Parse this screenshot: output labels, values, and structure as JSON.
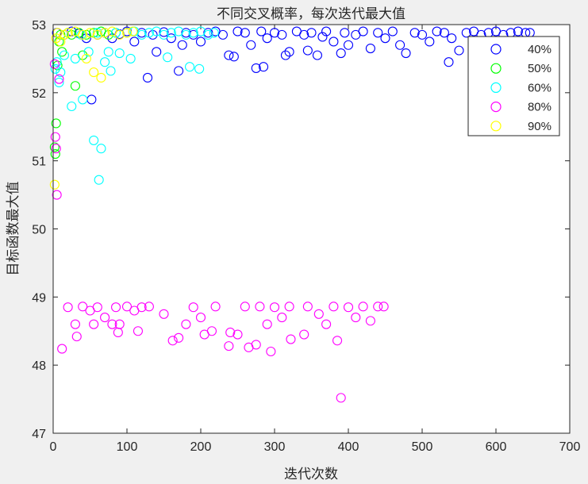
{
  "chart_data": {
    "type": "scatter",
    "title": "不同交叉概率，每次迭代最大值",
    "xlabel": "迭代次数",
    "ylabel": "目标函数最大值",
    "xlim": [
      0,
      700
    ],
    "ylim": [
      47,
      53
    ],
    "xticks": [
      0,
      100,
      200,
      300,
      400,
      500,
      600,
      700
    ],
    "yticks": [
      47,
      48,
      49,
      50,
      51,
      52,
      53
    ],
    "grid": false,
    "legend_position": "top-right",
    "marker": "open-circle",
    "series": [
      {
        "name": "40%",
        "color": "#0000ff",
        "points": [
          [
            5,
            52.88
          ],
          [
            15,
            52.85
          ],
          [
            25,
            52.9
          ],
          [
            35,
            52.87
          ],
          [
            45,
            52.8
          ],
          [
            52,
            51.9
          ],
          [
            60,
            52.85
          ],
          [
            70,
            52.88
          ],
          [
            80,
            52.8
          ],
          [
            90,
            52.86
          ],
          [
            100,
            52.9
          ],
          [
            110,
            52.75
          ],
          [
            120,
            52.88
          ],
          [
            128,
            52.22
          ],
          [
            135,
            52.85
          ],
          [
            140,
            52.6
          ],
          [
            150,
            52.89
          ],
          [
            160,
            52.8
          ],
          [
            170,
            52.32
          ],
          [
            175,
            52.7
          ],
          [
            180,
            52.88
          ],
          [
            190,
            52.85
          ],
          [
            200,
            52.75
          ],
          [
            210,
            52.88
          ],
          [
            220,
            52.9
          ],
          [
            230,
            52.85
          ],
          [
            238,
            52.55
          ],
          [
            245,
            52.53
          ],
          [
            250,
            52.9
          ],
          [
            260,
            52.88
          ],
          [
            268,
            52.7
          ],
          [
            275,
            52.36
          ],
          [
            282,
            52.9
          ],
          [
            285,
            52.38
          ],
          [
            290,
            52.8
          ],
          [
            300,
            52.88
          ],
          [
            310,
            52.85
          ],
          [
            315,
            52.55
          ],
          [
            320,
            52.6
          ],
          [
            330,
            52.9
          ],
          [
            340,
            52.85
          ],
          [
            345,
            52.62
          ],
          [
            350,
            52.88
          ],
          [
            358,
            52.55
          ],
          [
            365,
            52.82
          ],
          [
            370,
            52.9
          ],
          [
            380,
            52.75
          ],
          [
            390,
            52.58
          ],
          [
            395,
            52.88
          ],
          [
            400,
            52.7
          ],
          [
            410,
            52.85
          ],
          [
            420,
            52.9
          ],
          [
            430,
            52.65
          ],
          [
            440,
            52.88
          ],
          [
            450,
            52.8
          ],
          [
            460,
            52.9
          ],
          [
            470,
            52.7
          ],
          [
            478,
            52.58
          ],
          [
            490,
            52.88
          ],
          [
            500,
            52.85
          ],
          [
            510,
            52.75
          ],
          [
            520,
            52.9
          ],
          [
            530,
            52.88
          ],
          [
            536,
            52.45
          ],
          [
            540,
            52.8
          ],
          [
            550,
            52.62
          ],
          [
            560,
            52.88
          ],
          [
            570,
            52.9
          ],
          [
            580,
            52.85
          ],
          [
            590,
            52.88
          ],
          [
            600,
            52.9
          ],
          [
            610,
            52.85
          ],
          [
            620,
            52.88
          ],
          [
            630,
            52.9
          ],
          [
            640,
            52.88
          ],
          [
            646,
            52.88
          ]
        ]
      },
      {
        "name": "50%",
        "color": "#00ff00",
        "points": [
          [
            2,
            51.2
          ],
          [
            3,
            51.1
          ],
          [
            4,
            51.55
          ],
          [
            6,
            52.4
          ],
          [
            8,
            52.75
          ],
          [
            10,
            52.85
          ],
          [
            12,
            52.6
          ],
          [
            20,
            52.88
          ],
          [
            25,
            52.85
          ],
          [
            30,
            52.1
          ],
          [
            35,
            52.88
          ],
          [
            40,
            52.55
          ],
          [
            45,
            52.85
          ],
          [
            55,
            52.88
          ],
          [
            65,
            52.9
          ],
          [
            75,
            52.85
          ],
          [
            85,
            52.88
          ]
        ]
      },
      {
        "name": "60%",
        "color": "#00ffff",
        "points": [
          [
            3,
            52.35
          ],
          [
            5,
            52.45
          ],
          [
            8,
            52.15
          ],
          [
            10,
            52.3
          ],
          [
            15,
            52.55
          ],
          [
            25,
            51.8
          ],
          [
            30,
            52.5
          ],
          [
            38,
            52.85
          ],
          [
            40,
            51.9
          ],
          [
            48,
            52.6
          ],
          [
            55,
            51.3
          ],
          [
            60,
            52.88
          ],
          [
            62,
            50.72
          ],
          [
            65,
            51.18
          ],
          [
            70,
            52.45
          ],
          [
            75,
            52.6
          ],
          [
            78,
            52.32
          ],
          [
            85,
            52.88
          ],
          [
            90,
            52.58
          ],
          [
            100,
            52.88
          ],
          [
            105,
            52.5
          ],
          [
            110,
            52.9
          ],
          [
            120,
            52.85
          ],
          [
            130,
            52.88
          ],
          [
            140,
            52.9
          ],
          [
            150,
            52.85
          ],
          [
            155,
            52.52
          ],
          [
            160,
            52.88
          ],
          [
            170,
            52.9
          ],
          [
            180,
            52.85
          ],
          [
            185,
            52.38
          ],
          [
            190,
            52.88
          ],
          [
            198,
            52.35
          ],
          [
            200,
            52.9
          ],
          [
            210,
            52.85
          ],
          [
            218,
            52.88
          ]
        ]
      },
      {
        "name": "80%",
        "color": "#ff00ff",
        "points": [
          [
            2,
            52.42
          ],
          [
            3,
            51.35
          ],
          [
            4,
            51.18
          ],
          [
            5,
            50.5
          ],
          [
            8,
            52.2
          ],
          [
            12,
            48.24
          ],
          [
            20,
            48.85
          ],
          [
            30,
            48.6
          ],
          [
            32,
            48.42
          ],
          [
            40,
            48.86
          ],
          [
            50,
            48.8
          ],
          [
            55,
            48.6
          ],
          [
            60,
            48.85
          ],
          [
            70,
            48.7
          ],
          [
            80,
            48.6
          ],
          [
            85,
            48.85
          ],
          [
            88,
            48.48
          ],
          [
            90,
            48.6
          ],
          [
            100,
            48.86
          ],
          [
            110,
            48.8
          ],
          [
            115,
            48.5
          ],
          [
            120,
            48.85
          ],
          [
            130,
            48.86
          ],
          [
            150,
            48.75
          ],
          [
            162,
            48.36
          ],
          [
            170,
            48.4
          ],
          [
            180,
            48.6
          ],
          [
            190,
            48.85
          ],
          [
            200,
            48.7
          ],
          [
            205,
            48.45
          ],
          [
            215,
            48.5
          ],
          [
            220,
            48.86
          ],
          [
            238,
            48.28
          ],
          [
            240,
            48.48
          ],
          [
            250,
            48.45
          ],
          [
            260,
            48.86
          ],
          [
            265,
            48.26
          ],
          [
            275,
            48.3
          ],
          [
            280,
            48.86
          ],
          [
            290,
            48.6
          ],
          [
            295,
            48.2
          ],
          [
            300,
            48.85
          ],
          [
            310,
            48.7
          ],
          [
            320,
            48.86
          ],
          [
            322,
            48.38
          ],
          [
            340,
            48.45
          ],
          [
            345,
            48.86
          ],
          [
            360,
            48.75
          ],
          [
            370,
            48.6
          ],
          [
            380,
            48.86
          ],
          [
            385,
            48.36
          ],
          [
            390,
            47.52
          ],
          [
            400,
            48.85
          ],
          [
            410,
            48.7
          ],
          [
            420,
            48.86
          ],
          [
            430,
            48.65
          ],
          [
            440,
            48.86
          ],
          [
            448,
            48.86
          ]
        ]
      },
      {
        "name": "90%",
        "color": "#ffff00",
        "points": [
          [
            2,
            50.65
          ],
          [
            4,
            52.8
          ],
          [
            6,
            52.88
          ],
          [
            10,
            52.75
          ],
          [
            15,
            52.85
          ],
          [
            20,
            52.88
          ],
          [
            30,
            52.9
          ],
          [
            40,
            52.85
          ],
          [
            45,
            52.5
          ],
          [
            50,
            52.88
          ],
          [
            55,
            52.3
          ],
          [
            60,
            52.85
          ],
          [
            65,
            52.22
          ],
          [
            70,
            52.88
          ],
          [
            80,
            52.9
          ],
          [
            90,
            52.85
          ],
          [
            100,
            52.88
          ],
          [
            108,
            52.9
          ]
        ]
      }
    ]
  }
}
